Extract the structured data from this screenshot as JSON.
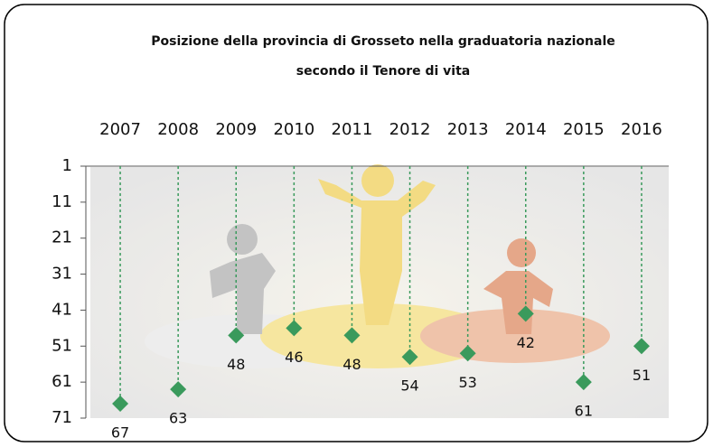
{
  "chart_data": {
    "type": "dot-drop",
    "title": [
      "Posizione della provincia di Grosseto nella graduatoria nazionale",
      "secondo il Tenore di vita"
    ],
    "categories": [
      "2007",
      "2008",
      "2009",
      "2010",
      "2011",
      "2012",
      "2013",
      "2014",
      "2015",
      "2016"
    ],
    "values": [
      67,
      63,
      48,
      46,
      48,
      54,
      53,
      42,
      61,
      51
    ],
    "color": "#3a9a5c",
    "ylim": [
      1,
      71
    ],
    "yticks": [
      1,
      11,
      21,
      31,
      41,
      51,
      61,
      71
    ],
    "y_reversed": true,
    "drop_lines": true
  }
}
